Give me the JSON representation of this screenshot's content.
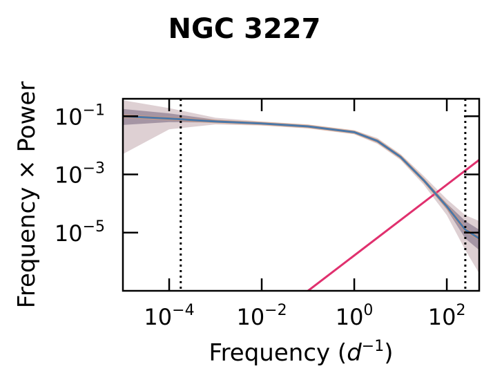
{
  "chart_data": {
    "type": "line",
    "title": "NGC 3227",
    "xlabel": "Frequency (d⁻¹)",
    "xlabel_parts": {
      "prefix": "Frequency (",
      "var": "d",
      "exp": "−1",
      "suffix": ")"
    },
    "ylabel": "Frequency × Power",
    "xscale": "log",
    "yscale": "log",
    "xlim_log10": [
      -5.0,
      2.7
    ],
    "ylim_log10": [
      -7.0,
      -0.4
    ],
    "x_ticks": [
      {
        "base": "10",
        "exp": "−4",
        "log10": -4
      },
      {
        "base": "10",
        "exp": "−2",
        "log10": -2
      },
      {
        "base": "10",
        "exp": "0",
        "log10": 0
      },
      {
        "base": "10",
        "exp": "2",
        "log10": 2
      }
    ],
    "y_ticks": [
      {
        "base": "10",
        "exp": "−1",
        "log10": -1
      },
      {
        "base": "10",
        "exp": "−3",
        "log10": -3
      },
      {
        "base": "10",
        "exp": "−5",
        "log10": -5
      }
    ],
    "vlines_log10x": [
      -3.75,
      2.4
    ],
    "series": [
      {
        "role": "median",
        "color": "#4a77a8",
        "log10x": [
          -5.0,
          -4.0,
          -3.0,
          -2.0,
          -1.0,
          0.0,
          0.5,
          1.0,
          1.5,
          2.0,
          2.4,
          2.7
        ],
        "log10y": [
          -1.0,
          -1.08,
          -1.18,
          -1.25,
          -1.35,
          -1.55,
          -1.85,
          -2.4,
          -3.2,
          -4.1,
          -4.9,
          -5.2
        ]
      },
      {
        "role": "inner-band",
        "color": "#7e6e86",
        "log10x": [
          -5.0,
          -4.0,
          -3.0,
          -2.0,
          -1.0,
          0.0,
          0.5,
          1.0,
          1.5,
          2.0,
          2.4,
          2.7
        ],
        "log10y_low": [
          -1.3,
          -1.2,
          -1.22,
          -1.28,
          -1.38,
          -1.58,
          -1.9,
          -2.45,
          -3.25,
          -4.2,
          -5.2,
          -5.6
        ],
        "log10y_high": [
          -0.75,
          -0.9,
          -1.12,
          -1.22,
          -1.32,
          -1.52,
          -1.8,
          -2.35,
          -3.15,
          -4.0,
          -4.6,
          -4.9
        ]
      },
      {
        "role": "outer-band",
        "color": "#c8b0b6",
        "log10x": [
          -5.0,
          -4.0,
          -3.0,
          -2.0,
          -1.0,
          0.0,
          0.5,
          1.0,
          1.5,
          2.0,
          2.4,
          2.7
        ],
        "log10y_low": [
          -2.3,
          -1.45,
          -1.28,
          -1.32,
          -1.42,
          -1.62,
          -1.95,
          -2.5,
          -3.35,
          -4.4,
          -5.6,
          -6.4
        ],
        "log10y_high": [
          -0.45,
          -0.72,
          -1.05,
          -1.18,
          -1.28,
          -1.48,
          -1.75,
          -2.3,
          -3.05,
          -3.85,
          -4.4,
          -4.6
        ]
      },
      {
        "role": "noise-line",
        "color": "#e0306e",
        "log10x": [
          -1.0,
          2.7
        ],
        "log10y": [
          -7.0,
          -2.5
        ]
      }
    ]
  }
}
